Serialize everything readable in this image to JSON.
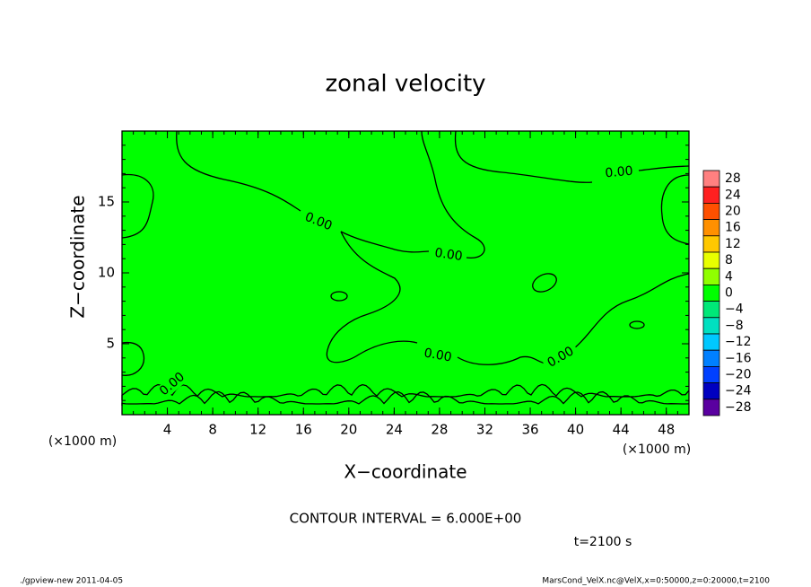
{
  "chart_data": {
    "type": "contour",
    "title": "zonal velocity",
    "xlabel": "X−coordinate",
    "ylabel": "Z−coordinate",
    "x_unit": "(×1000 m)",
    "xlim": [
      0,
      50
    ],
    "ylim": [
      0,
      20
    ],
    "xticks": [
      4,
      8,
      12,
      16,
      20,
      24,
      28,
      32,
      36,
      40,
      44,
      48
    ],
    "yticks": [
      5,
      10,
      15
    ],
    "fill_color": "#00ff00",
    "contour_level": {
      "value": 0,
      "label": "0.00"
    },
    "colorbar": {
      "levels": [
        28,
        24,
        20,
        16,
        12,
        8,
        4,
        0,
        -4,
        -8,
        -12,
        -16,
        -20,
        -24,
        -28
      ],
      "labels": [
        "28",
        "24",
        "20",
        "16",
        "12",
        "8",
        "4",
        "0",
        "−4",
        "−8",
        "−12",
        "−16",
        "−20",
        "−24",
        "−28"
      ],
      "colors": [
        "#ff8080",
        "#ff2020",
        "#ff5000",
        "#ff9000",
        "#ffc800",
        "#e8ff00",
        "#90ff00",
        "#00ff00",
        "#00e878",
        "#00e0c0",
        "#00c8ff",
        "#0080ff",
        "#0040ff",
        "#0000c0",
        "#5a00a0"
      ]
    },
    "contour_interval": "CONTOUR INTERVAL = 6.000E+00",
    "time_label": "t=2100 s",
    "footer_left": "./gpview-new  2011-04-05",
    "footer_right": "MarsCond_VelX.nc@VelX,x=0:50000,z=0:20000,t=2100"
  }
}
